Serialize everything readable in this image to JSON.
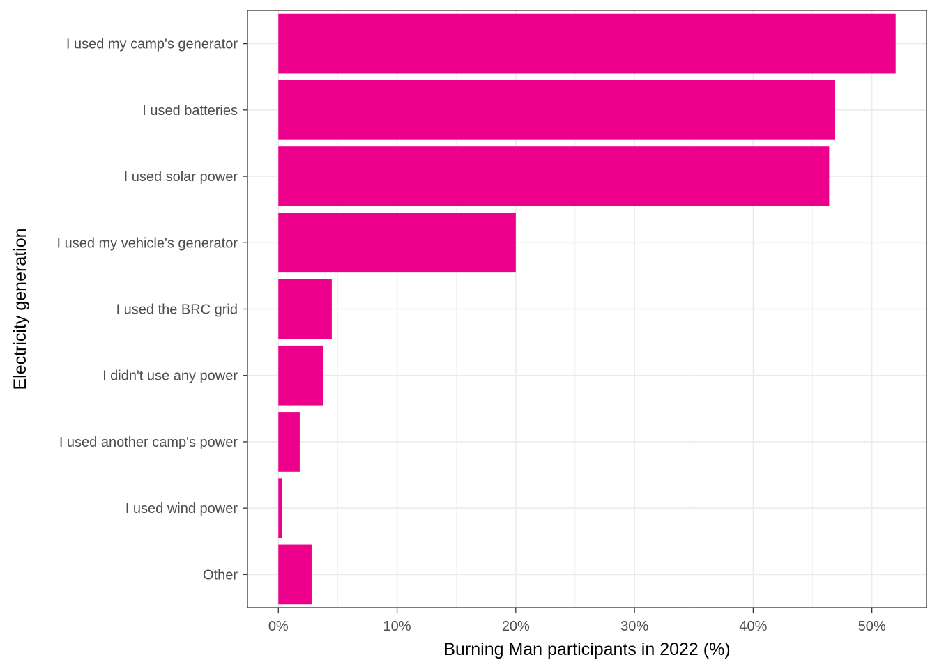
{
  "chart_data": {
    "type": "bar",
    "orientation": "horizontal",
    "categories": [
      "I used my camp's generator",
      "I used batteries",
      "I used solar power",
      "I used my vehicle's generator",
      "I used the BRC grid",
      "I didn't use any power",
      "I used another camp's power",
      "I used wind power",
      "Other"
    ],
    "values": [
      52.0,
      46.9,
      46.4,
      20.0,
      4.5,
      3.8,
      1.8,
      0.3,
      2.8
    ],
    "xlabel": "Burning Man participants in 2022 (%)",
    "ylabel": "Electricity generation",
    "xlim": [
      -2.6,
      54.6
    ],
    "x_ticks": [
      0,
      10,
      20,
      30,
      40,
      50
    ],
    "x_tick_labels": [
      "0%",
      "10%",
      "20%",
      "30%",
      "40%",
      "50%"
    ],
    "bar_color": "#EC008C",
    "grid": true,
    "legend": "none"
  }
}
